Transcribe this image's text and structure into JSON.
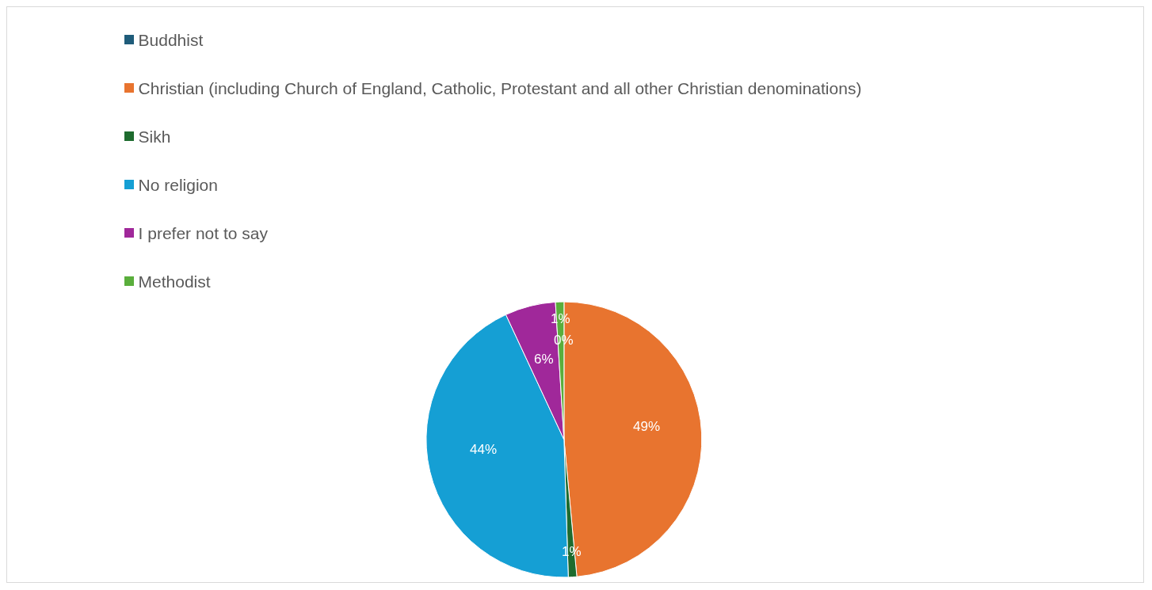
{
  "chart_data": {
    "type": "pie",
    "categories": [
      "Buddhist",
      "Christian (including Church of England, Catholic, Protestant and all other Christian denominations)",
      "Sikh",
      "No religion",
      "I prefer not to say",
      "Methodist"
    ],
    "values": [
      0,
      49,
      1,
      44,
      6,
      1
    ],
    "colors": [
      "#1f5c7a",
      "#e8742f",
      "#1e6b2e",
      "#159fd4",
      "#a0289a",
      "#5aae3c"
    ],
    "value_labels": [
      "0%",
      "49%",
      "1%",
      "44%",
      "6%",
      "1%"
    ],
    "legend": "top left"
  }
}
